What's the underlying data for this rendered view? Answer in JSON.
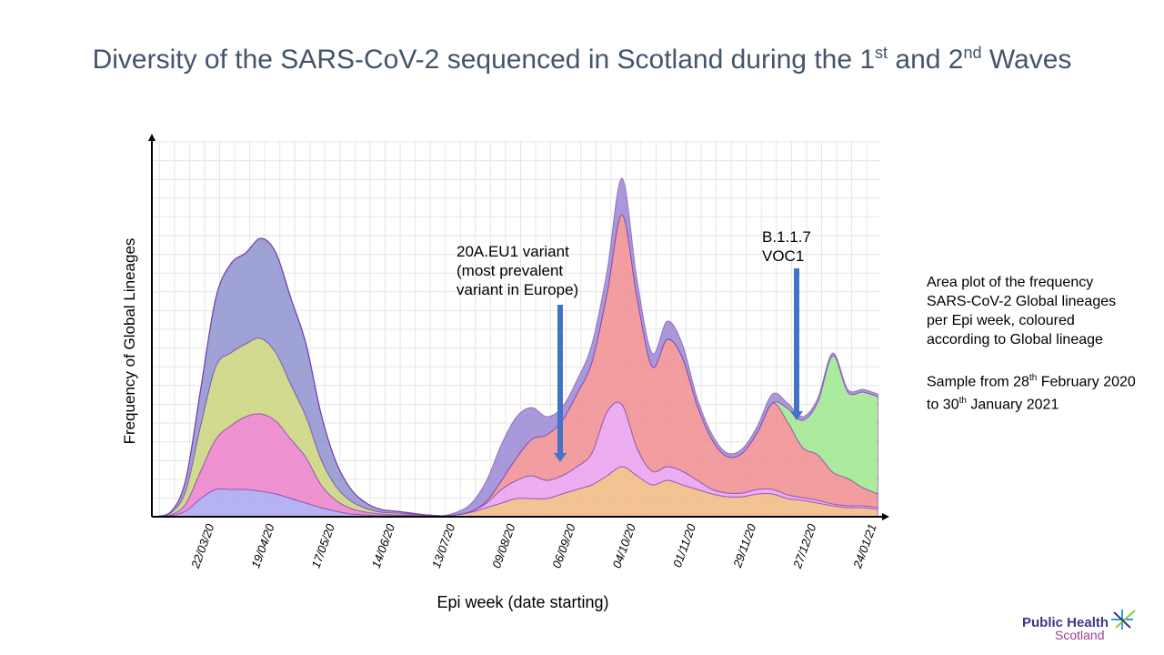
{
  "title": {
    "pre": "Diversity of the SARS-CoV-2 sequenced in Scotland during the 1",
    "sup1": "st",
    "mid": " and 2",
    "sup2": "nd",
    "post": " Waves"
  },
  "annotations": {
    "eu1": [
      "20A.EU1 variant",
      "(most prevalent",
      "variant in Europe)"
    ],
    "voc": [
      "B.1.1.7",
      "VOC1"
    ],
    "arrow_color": "#4472c4"
  },
  "side": {
    "p1": "Area plot of the frequency SARS-CoV-2 Global lineages per Epi week, coloured according to Global lineage",
    "p2_pre": "Sample from 28",
    "p2_sup1": "th",
    "p2_mid": " February 2020 to 30",
    "p2_sup2": "th",
    "p2_post": " January 2021"
  },
  "logo": {
    "line1": "Public Health",
    "line2": "Scotland"
  },
  "chart_data": {
    "type": "area",
    "stacked": true,
    "xlabel": "Epi week (date starting)",
    "ylabel": "Frequency of Global Lineages",
    "grid": true,
    "ylim": [
      0,
      413
    ],
    "x_weeks": 49,
    "tick_weeks": [
      3,
      7,
      11,
      15,
      19,
      23,
      27,
      31,
      35,
      39,
      43,
      47
    ],
    "tick_labels": [
      "22/03/20",
      "19/04/20",
      "17/05/20",
      "14/06/20",
      "13/07/20",
      "09/08/20",
      "06/09/20",
      "04/10/20",
      "01/11/20",
      "29/11/20",
      "27/12/20",
      "24/01/21"
    ],
    "series": [
      {
        "color": "#a9a6f0",
        "values": [
          0,
          1,
          6,
          20,
          30,
          30,
          30,
          28,
          25,
          20,
          15,
          10,
          6,
          3,
          2,
          1,
          1,
          1,
          0,
          0,
          0,
          0,
          0,
          0,
          0,
          0,
          0,
          0,
          0,
          0,
          0,
          0,
          0,
          0,
          0,
          0,
          0,
          0,
          0,
          0,
          0,
          0,
          0,
          0,
          0,
          0,
          0,
          0,
          0
        ]
      },
      {
        "color": "#ec7fc9",
        "values": [
          0,
          1,
          8,
          30,
          55,
          70,
          80,
          85,
          80,
          65,
          50,
          25,
          12,
          6,
          3,
          2,
          1,
          1,
          1,
          0,
          0,
          0,
          0,
          0,
          0,
          0,
          0,
          0,
          0,
          0,
          0,
          0,
          0,
          0,
          0,
          0,
          0,
          0,
          0,
          0,
          0,
          0,
          0,
          0,
          0,
          0,
          0,
          0,
          0
        ]
      },
      {
        "color": "#c9d37a",
        "values": [
          0,
          2,
          14,
          50,
          80,
          80,
          80,
          83,
          75,
          60,
          45,
          28,
          15,
          8,
          4,
          2,
          2,
          1,
          1,
          1,
          0,
          0,
          0,
          0,
          0,
          0,
          0,
          0,
          0,
          0,
          0,
          0,
          0,
          0,
          0,
          0,
          0,
          0,
          0,
          0,
          0,
          0,
          0,
          0,
          0,
          0,
          0,
          0,
          0
        ]
      },
      {
        "color": "#8e92cc",
        "values": [
          0,
          1,
          12,
          40,
          75,
          98,
          100,
          110,
          110,
          95,
          80,
          50,
          27,
          13,
          6,
          3,
          2,
          1,
          0,
          0,
          0,
          0,
          0,
          0,
          0,
          0,
          0,
          0,
          0,
          0,
          0,
          0,
          0,
          0,
          0,
          0,
          0,
          0,
          0,
          0,
          0,
          0,
          0,
          0,
          0,
          0,
          0,
          0,
          0
        ]
      },
      {
        "color": "#f2b980",
        "values": [
          0,
          0,
          0,
          0,
          0,
          0,
          0,
          0,
          0,
          0,
          0,
          0,
          0,
          0,
          0,
          0,
          0,
          0,
          0,
          0,
          2,
          5,
          10,
          15,
          20,
          20,
          20,
          25,
          30,
          35,
          45,
          55,
          45,
          35,
          40,
          35,
          30,
          25,
          22,
          22,
          25,
          25,
          20,
          18,
          15,
          12,
          10,
          10,
          8
        ]
      },
      {
        "color": "#e9a0ee",
        "values": [
          0,
          0,
          0,
          0,
          0,
          0,
          0,
          0,
          0,
          0,
          0,
          0,
          0,
          0,
          0,
          0,
          0,
          0,
          0,
          0,
          0,
          1,
          5,
          15,
          20,
          25,
          20,
          20,
          25,
          35,
          70,
          68,
          30,
          15,
          15,
          15,
          10,
          5,
          4,
          4,
          5,
          5,
          4,
          3,
          3,
          2,
          2,
          2,
          2
        ]
      },
      {
        "color": "#f08c8e",
        "values": [
          0,
          0,
          0,
          0,
          0,
          0,
          0,
          0,
          0,
          0,
          0,
          0,
          0,
          0,
          0,
          0,
          0,
          0,
          0,
          0,
          0,
          0,
          2,
          10,
          25,
          40,
          50,
          60,
          80,
          100,
          130,
          209,
          165,
          115,
          140,
          125,
          82,
          54,
          40,
          44,
          63,
          95,
          80,
          55,
          50,
          35,
          30,
          20,
          15
        ]
      },
      {
        "color": "#9ee88c",
        "values": [
          0,
          0,
          0,
          0,
          0,
          0,
          0,
          0,
          0,
          0,
          0,
          0,
          0,
          0,
          0,
          0,
          0,
          0,
          0,
          0,
          0,
          0,
          0,
          0,
          0,
          0,
          0,
          0,
          0,
          0,
          0,
          0,
          0,
          0,
          0,
          0,
          0,
          0,
          0,
          0,
          0,
          0,
          15,
          30,
          58,
          128,
          95,
          105,
          107
        ]
      },
      {
        "color": "#9a86d4",
        "values": [
          0,
          0,
          0,
          0,
          0,
          0,
          0,
          0,
          0,
          0,
          0,
          0,
          0,
          0,
          0,
          0,
          0,
          0,
          0,
          0,
          3,
          9,
          23,
          40,
          45,
          35,
          20,
          15,
          15,
          20,
          25,
          40,
          20,
          15,
          20,
          15,
          8,
          6,
          4,
          5,
          7,
          10,
          6,
          4,
          4,
          3,
          3,
          3,
          3
        ]
      }
    ]
  }
}
